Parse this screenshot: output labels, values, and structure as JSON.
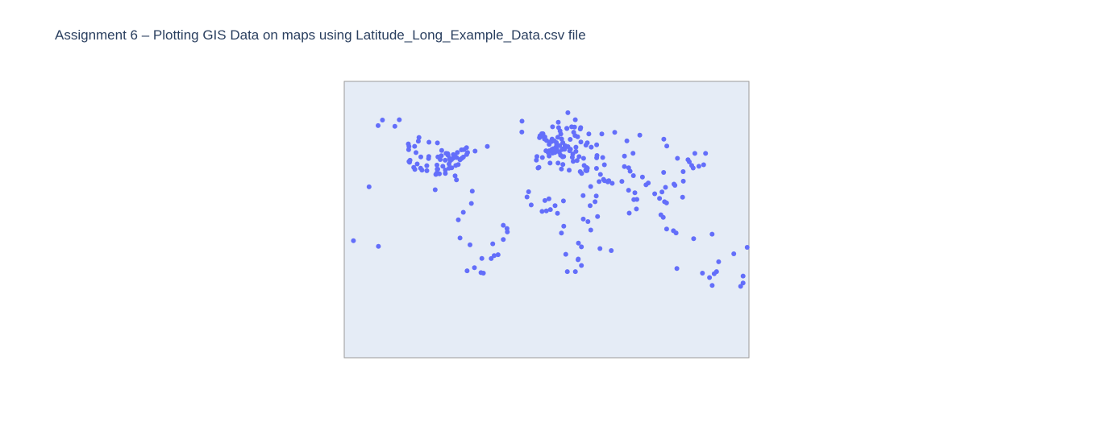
{
  "chart_data": {
    "type": "scatter",
    "title": "Assignment 6 – Plotting GIS Data on maps using Latitude_Long_Example_Data.csv file",
    "marker_color": "#636efa",
    "background_color": "#e5ecf6",
    "grid": false,
    "legend": false,
    "xlim": [
      -180,
      180
    ],
    "ylim": [
      -90,
      90
    ],
    "points": [
      {
        "lon": -149.9,
        "lat": 61.2
      },
      {
        "lon": -146.0,
        "lat": 64.8
      },
      {
        "lon": -135.0,
        "lat": 60.7
      },
      {
        "lon": -131.0,
        "lat": 65.0
      },
      {
        "lon": -123.0,
        "lat": 49.3
      },
      {
        "lon": -122.7,
        "lat": 45.5
      },
      {
        "lon": -122.4,
        "lat": 47.6
      },
      {
        "lon": -122.4,
        "lat": 37.8
      },
      {
        "lon": -121.9,
        "lat": 37.3
      },
      {
        "lon": -121.5,
        "lat": 38.6
      },
      {
        "lon": -118.2,
        "lat": 34.0
      },
      {
        "lon": -117.2,
        "lat": 32.7
      },
      {
        "lon": -117.4,
        "lat": 47.7
      },
      {
        "lon": -116.2,
        "lat": 43.6
      },
      {
        "lon": -115.1,
        "lat": 36.2
      },
      {
        "lon": -114.1,
        "lat": 51.0
      },
      {
        "lon": -113.5,
        "lat": 53.5
      },
      {
        "lon": -112.1,
        "lat": 33.5
      },
      {
        "lon": -111.9,
        "lat": 40.8
      },
      {
        "lon": -110.9,
        "lat": 32.2
      },
      {
        "lon": -106.6,
        "lat": 35.1
      },
      {
        "lon": -106.5,
        "lat": 31.8
      },
      {
        "lon": -105.0,
        "lat": 39.7
      },
      {
        "lon": -104.8,
        "lat": 41.1
      },
      {
        "lon": -104.6,
        "lat": 50.4
      },
      {
        "lon": -99.1,
        "lat": 19.4
      },
      {
        "lon": -98.5,
        "lat": 29.4
      },
      {
        "lon": -97.7,
        "lat": 30.3
      },
      {
        "lon": -97.5,
        "lat": 35.5
      },
      {
        "lon": -97.3,
        "lat": 32.8
      },
      {
        "lon": -97.1,
        "lat": 49.9
      },
      {
        "lon": -96.8,
        "lat": 32.8
      },
      {
        "lon": -96.7,
        "lat": 40.8
      },
      {
        "lon": -95.4,
        "lat": 29.8
      },
      {
        "lon": -94.6,
        "lat": 39.1
      },
      {
        "lon": -93.3,
        "lat": 45.0
      },
      {
        "lon": -93.6,
        "lat": 41.6
      },
      {
        "lon": -92.3,
        "lat": 34.7
      },
      {
        "lon": -90.2,
        "lat": 38.6
      },
      {
        "lon": -90.1,
        "lat": 30.0
      },
      {
        "lon": -90.1,
        "lat": 32.3
      },
      {
        "lon": -89.4,
        "lat": 43.1
      },
      {
        "lon": -88.0,
        "lat": 43.0
      },
      {
        "lon": -87.6,
        "lat": 41.9
      },
      {
        "lon": -86.8,
        "lat": 36.2
      },
      {
        "lon": -86.8,
        "lat": 33.5
      },
      {
        "lon": -86.2,
        "lat": 39.8
      },
      {
        "lon": -85.8,
        "lat": 38.3
      },
      {
        "lon": -84.5,
        "lat": 39.1
      },
      {
        "lon": -84.4,
        "lat": 33.7
      },
      {
        "lon": -83.0,
        "lat": 40.0
      },
      {
        "lon": -83.0,
        "lat": 42.3
      },
      {
        "lon": -81.7,
        "lat": 41.5
      },
      {
        "lon": -81.4,
        "lat": 28.5
      },
      {
        "lon": -80.8,
        "lat": 35.2
      },
      {
        "lon": -80.2,
        "lat": 25.8
      },
      {
        "lon": -80.0,
        "lat": 40.4
      },
      {
        "lon": -79.4,
        "lat": 43.7
      },
      {
        "lon": -78.6,
        "lat": 35.8
      },
      {
        "lon": -77.0,
        "lat": 38.9
      },
      {
        "lon": -76.6,
        "lat": 39.3
      },
      {
        "lon": -75.7,
        "lat": 45.4
      },
      {
        "lon": -75.2,
        "lat": 40.0
      },
      {
        "lon": -74.0,
        "lat": 40.7
      },
      {
        "lon": -73.6,
        "lat": 45.5
      },
      {
        "lon": -71.1,
        "lat": 42.4
      },
      {
        "lon": -71.2,
        "lat": 46.8
      },
      {
        "lon": -70.3,
        "lat": 43.7
      },
      {
        "lon": -66.1,
        "lat": 18.5
      },
      {
        "lon": -63.6,
        "lat": 44.6
      },
      {
        "lon": -52.7,
        "lat": 47.6
      },
      {
        "lon": -78.5,
        "lat": -0.2
      },
      {
        "lon": -77.0,
        "lat": -12.0
      },
      {
        "lon": -74.1,
        "lat": 4.7
      },
      {
        "lon": -70.7,
        "lat": -33.4
      },
      {
        "lon": -68.1,
        "lat": -16.5
      },
      {
        "lon": -66.9,
        "lat": 10.5
      },
      {
        "lon": -64.2,
        "lat": -31.4
      },
      {
        "lon": -58.4,
        "lat": -34.6
      },
      {
        "lon": -57.6,
        "lat": -25.3
      },
      {
        "lon": -56.2,
        "lat": -34.9
      },
      {
        "lon": -49.3,
        "lat": -25.4
      },
      {
        "lon": -47.9,
        "lat": -15.8
      },
      {
        "lon": -46.6,
        "lat": -23.5
      },
      {
        "lon": -43.2,
        "lat": -22.9
      },
      {
        "lon": -38.5,
        "lat": -13.0
      },
      {
        "lon": -38.5,
        "lat": -3.7
      },
      {
        "lon": -34.9,
        "lat": -8.1
      },
      {
        "lon": -35.2,
        "lat": -5.8
      },
      {
        "lon": -21.9,
        "lat": 64.1
      },
      {
        "lon": -22.0,
        "lat": 57.0
      },
      {
        "lon": -9.1,
        "lat": 38.7
      },
      {
        "lon": -8.6,
        "lat": 41.1
      },
      {
        "lon": -6.3,
        "lat": 53.3
      },
      {
        "lon": -5.9,
        "lat": 54.6
      },
      {
        "lon": -3.7,
        "lat": 40.4
      },
      {
        "lon": -3.2,
        "lat": 55.9
      },
      {
        "lon": -4.3,
        "lat": 55.9
      },
      {
        "lon": -2.2,
        "lat": 53.5
      },
      {
        "lon": -1.9,
        "lat": 52.5
      },
      {
        "lon": -0.1,
        "lat": 51.5
      },
      {
        "lon": -1.5,
        "lat": 53.8
      },
      {
        "lon": 2.2,
        "lat": 41.4
      },
      {
        "lon": 2.3,
        "lat": 48.9
      },
      {
        "lon": 4.4,
        "lat": 50.8
      },
      {
        "lon": 4.9,
        "lat": 52.4
      },
      {
        "lon": 4.8,
        "lat": 45.8
      },
      {
        "lon": 5.4,
        "lat": 43.3
      },
      {
        "lon": 6.1,
        "lat": 46.2
      },
      {
        "lon": 7.4,
        "lat": 43.7
      },
      {
        "lon": 6.8,
        "lat": 51.2
      },
      {
        "lon": 8.7,
        "lat": 50.1
      },
      {
        "lon": 8.5,
        "lat": 47.4
      },
      {
        "lon": 9.2,
        "lat": 45.5
      },
      {
        "lon": 10.0,
        "lat": 53.6
      },
      {
        "lon": 9.0,
        "lat": 48.8
      },
      {
        "lon": 10.7,
        "lat": 59.9
      },
      {
        "lon": 11.6,
        "lat": 48.1
      },
      {
        "lon": 12.5,
        "lat": 41.9
      },
      {
        "lon": 12.6,
        "lat": 55.7
      },
      {
        "lon": 13.4,
        "lat": 52.5
      },
      {
        "lon": 14.4,
        "lat": 50.1
      },
      {
        "lon": 14.3,
        "lat": 40.9
      },
      {
        "lon": 16.4,
        "lat": 48.2
      },
      {
        "lon": 18.1,
        "lat": 59.3
      },
      {
        "lon": 19.0,
        "lat": 47.5
      },
      {
        "lon": 21.0,
        "lat": 52.2
      },
      {
        "lon": 23.7,
        "lat": 37.9
      },
      {
        "lon": 24.9,
        "lat": 60.2
      },
      {
        "lon": 26.1,
        "lat": 44.4
      },
      {
        "lon": 23.3,
        "lat": 42.7
      },
      {
        "lon": 20.5,
        "lat": 44.8
      },
      {
        "lon": 24.1,
        "lat": 56.9
      },
      {
        "lon": 25.3,
        "lat": 54.7
      },
      {
        "lon": 27.6,
        "lat": 53.9
      },
      {
        "lon": 30.5,
        "lat": 50.5
      },
      {
        "lon": 28.9,
        "lat": 41.0
      },
      {
        "lon": 30.3,
        "lat": 59.9
      },
      {
        "lon": 37.6,
        "lat": 55.8
      },
      {
        "lon": 32.9,
        "lat": 39.9
      },
      {
        "lon": 27.1,
        "lat": 38.4
      },
      {
        "lon": 18.0,
        "lat": 59.4
      },
      {
        "lon": 22.3,
        "lat": 60.4
      },
      {
        "lon": 12.0,
        "lat": 57.7
      },
      {
        "lon": 5.3,
        "lat": 60.4
      },
      {
        "lon": 10.4,
        "lat": 63.4
      },
      {
        "lon": 25.5,
        "lat": 65.0
      },
      {
        "lon": 18.9,
        "lat": 69.6
      },
      {
        "lon": 14.5,
        "lat": 46.1
      },
      {
        "lon": 16.0,
        "lat": 45.8
      },
      {
        "lon": 21.2,
        "lat": 45.8
      },
      {
        "lon": 26.1,
        "lat": 47.2
      },
      {
        "lon": 35.0,
        "lat": 48.5
      },
      {
        "lon": 36.2,
        "lat": 50.0
      },
      {
        "lon": 39.7,
        "lat": 47.2
      },
      {
        "lon": 44.5,
        "lat": 48.7
      },
      {
        "lon": 49.1,
        "lat": 55.8
      },
      {
        "lon": 30.0,
        "lat": 59.0
      },
      {
        "lon": 2.4,
        "lat": 44.8
      },
      {
        "lon": -0.6,
        "lat": 44.8
      },
      {
        "lon": 1.4,
        "lat": 43.6
      },
      {
        "lon": 3.1,
        "lat": 50.6
      },
      {
        "lon": 7.7,
        "lat": 45.1
      },
      {
        "lon": 11.3,
        "lat": 43.8
      },
      {
        "lon": 13.8,
        "lat": 45.6
      },
      {
        "lon": 15.2,
        "lat": 41.1
      },
      {
        "lon": 14.5,
        "lat": 35.9
      },
      {
        "lon": 22.9,
        "lat": 40.6
      },
      {
        "lon": 33.4,
        "lat": 35.2
      },
      {
        "lon": -7.6,
        "lat": 33.6
      },
      {
        "lon": -6.8,
        "lat": 34.0
      },
      {
        "lon": 3.1,
        "lat": 36.8
      },
      {
        "lon": 10.2,
        "lat": 36.8
      },
      {
        "lon": 13.2,
        "lat": 32.9
      },
      {
        "lon": 20.1,
        "lat": 32.1
      },
      {
        "lon": 31.2,
        "lat": 30.0
      },
      {
        "lon": 29.9,
        "lat": 31.2
      },
      {
        "lon": -17.4,
        "lat": 14.7
      },
      {
        "lon": -16.0,
        "lat": 18.1
      },
      {
        "lon": -13.7,
        "lat": 9.5
      },
      {
        "lon": -4.0,
        "lat": 5.3
      },
      {
        "lon": -1.5,
        "lat": 12.4
      },
      {
        "lon": -0.2,
        "lat": 5.6
      },
      {
        "lon": 2.1,
        "lat": 13.5
      },
      {
        "lon": 3.4,
        "lat": 6.5
      },
      {
        "lon": 7.5,
        "lat": 9.1
      },
      {
        "lon": 9.7,
        "lat": 4.1
      },
      {
        "lon": 15.0,
        "lat": 12.1
      },
      {
        "lon": 15.3,
        "lat": -4.3
      },
      {
        "lon": 32.5,
        "lat": 15.6
      },
      {
        "lon": 32.6,
        "lat": 0.3
      },
      {
        "lon": 36.8,
        "lat": -1.3
      },
      {
        "lon": 38.7,
        "lat": 9.0
      },
      {
        "lon": 39.3,
        "lat": -6.8
      },
      {
        "lon": 28.3,
        "lat": -15.4
      },
      {
        "lon": 31.0,
        "lat": -17.8
      },
      {
        "lon": 28.0,
        "lat": -26.2
      },
      {
        "lon": 28.2,
        "lat": -25.7
      },
      {
        "lon": 18.4,
        "lat": -33.9
      },
      {
        "lon": 31.0,
        "lat": -29.9
      },
      {
        "lon": 25.6,
        "lat": -33.9
      },
      {
        "lon": 13.2,
        "lat": -8.8
      },
      {
        "lon": 17.1,
        "lat": -22.6
      },
      {
        "lon": 47.5,
        "lat": -18.9
      },
      {
        "lon": 57.5,
        "lat": -20.2
      },
      {
        "lon": 45.3,
        "lat": 2.0
      },
      {
        "lon": 43.1,
        "lat": 11.6
      },
      {
        "lon": 35.2,
        "lat": 31.8
      },
      {
        "lon": 34.8,
        "lat": 32.1
      },
      {
        "lon": 35.5,
        "lat": 33.9
      },
      {
        "lon": 36.3,
        "lat": 33.5
      },
      {
        "lon": 35.9,
        "lat": 31.9
      },
      {
        "lon": 44.4,
        "lat": 33.3
      },
      {
        "lon": 46.7,
        "lat": 24.7
      },
      {
        "lon": 39.2,
        "lat": 21.5
      },
      {
        "lon": 47.9,
        "lat": 29.4
      },
      {
        "lon": 50.6,
        "lat": 26.2
      },
      {
        "lon": 51.5,
        "lat": 25.3
      },
      {
        "lon": 54.4,
        "lat": 24.5
      },
      {
        "lon": 55.3,
        "lat": 25.3
      },
      {
        "lon": 58.4,
        "lat": 23.6
      },
      {
        "lon": 44.2,
        "lat": 15.4
      },
      {
        "lon": 51.4,
        "lat": 35.7
      },
      {
        "lon": 44.5,
        "lat": 40.2
      },
      {
        "lon": 44.8,
        "lat": 41.7
      },
      {
        "lon": 49.9,
        "lat": 40.4
      },
      {
        "lon": 69.2,
        "lat": 34.5
      },
      {
        "lon": 67.0,
        "lat": 24.9
      },
      {
        "lon": 73.0,
        "lat": 33.7
      },
      {
        "lon": 74.3,
        "lat": 31.5
      },
      {
        "lon": 72.9,
        "lat": 19.1
      },
      {
        "lon": 77.2,
        "lat": 28.6
      },
      {
        "lon": 77.6,
        "lat": 13.0
      },
      {
        "lon": 80.3,
        "lat": 13.1
      },
      {
        "lon": 78.5,
        "lat": 17.4
      },
      {
        "lon": 88.4,
        "lat": 22.6
      },
      {
        "lon": 85.3,
        "lat": 27.7
      },
      {
        "lon": 90.4,
        "lat": 23.8
      },
      {
        "lon": 79.9,
        "lat": 6.9
      },
      {
        "lon": 73.5,
        "lat": 4.2
      },
      {
        "lon": 96.2,
        "lat": 16.8
      },
      {
        "lon": 100.5,
        "lat": 13.8
      },
      {
        "lon": 102.6,
        "lat": 18.0
      },
      {
        "lon": 104.9,
        "lat": 11.6
      },
      {
        "lon": 105.8,
        "lat": 21.0
      },
      {
        "lon": 106.7,
        "lat": 10.8
      },
      {
        "lon": 101.7,
        "lat": 3.1
      },
      {
        "lon": 103.8,
        "lat": 1.4
      },
      {
        "lon": 106.8,
        "lat": -6.2
      },
      {
        "lon": 112.8,
        "lat": -7.3
      },
      {
        "lon": 115.2,
        "lat": -8.7
      },
      {
        "lon": 121.0,
        "lat": 14.6
      },
      {
        "lon": 114.2,
        "lat": 22.3
      },
      {
        "lon": 113.3,
        "lat": 23.1
      },
      {
        "lon": 121.5,
        "lat": 31.2
      },
      {
        "lon": 116.4,
        "lat": 39.9
      },
      {
        "lon": 104.1,
        "lat": 30.7
      },
      {
        "lon": 121.6,
        "lat": 25.0
      },
      {
        "lon": 126.9,
        "lat": 37.6
      },
      {
        "lon": 129.1,
        "lat": 35.2
      },
      {
        "lon": 139.7,
        "lat": 35.7
      },
      {
        "lon": 135.5,
        "lat": 34.7
      },
      {
        "lon": 130.4,
        "lat": 33.6
      },
      {
        "lon": 141.4,
        "lat": 43.1
      },
      {
        "lon": 125.8,
        "lat": 39.0
      },
      {
        "lon": 106.9,
        "lat": 47.9
      },
      {
        "lon": 76.9,
        "lat": 43.2
      },
      {
        "lon": 69.3,
        "lat": 41.3
      },
      {
        "lon": 71.4,
        "lat": 51.2
      },
      {
        "lon": 82.9,
        "lat": 55.0
      },
      {
        "lon": 60.6,
        "lat": 56.8
      },
      {
        "lon": 104.3,
        "lat": 52.3
      },
      {
        "lon": 131.9,
        "lat": 43.1
      },
      {
        "lon": 115.9,
        "lat": -31.9
      },
      {
        "lon": 138.6,
        "lat": -34.9
      },
      {
        "lon": 144.9,
        "lat": -37.8
      },
      {
        "lon": 151.2,
        "lat": -33.9
      },
      {
        "lon": 153.0,
        "lat": -27.5
      },
      {
        "lon": 149.1,
        "lat": -35.3
      },
      {
        "lon": 147.3,
        "lat": -42.9
      },
      {
        "lon": 130.8,
        "lat": -12.5
      },
      {
        "lon": 174.8,
        "lat": -36.8
      },
      {
        "lon": 174.8,
        "lat": -41.3
      },
      {
        "lon": 172.6,
        "lat": -43.5
      },
      {
        "lon": 178.4,
        "lat": -18.1
      },
      {
        "lon": 147.2,
        "lat": -9.5
      },
      {
        "lon": 166.5,
        "lat": -22.3
      },
      {
        "lon": -157.9,
        "lat": 21.3
      },
      {
        "lon": -149.6,
        "lat": -17.5
      },
      {
        "lon": -171.8,
        "lat": -13.8
      }
    ]
  }
}
